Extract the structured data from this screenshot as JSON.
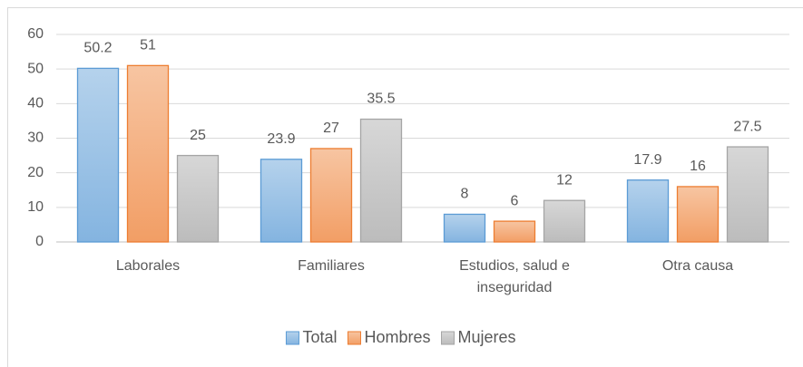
{
  "chart_data": {
    "type": "bar",
    "categories": [
      "Laborales",
      "Familiares",
      "Estudios, salud e inseguridad",
      "Otra causa"
    ],
    "series": [
      {
        "name": "Total",
        "color": "#5b9bd5",
        "values": [
          50.2,
          23.9,
          8,
          17.9
        ]
      },
      {
        "name": "Hombres",
        "color": "#ed7d31",
        "values": [
          51,
          27,
          6,
          16
        ]
      },
      {
        "name": "Mujeres",
        "color": "#a5a5a5",
        "values": [
          25,
          35.5,
          12,
          27.5
        ]
      }
    ],
    "ylim": [
      0,
      60
    ],
    "yticks": [
      0,
      10,
      20,
      30,
      40,
      50,
      60
    ],
    "grid": true,
    "legend": "bottom"
  }
}
